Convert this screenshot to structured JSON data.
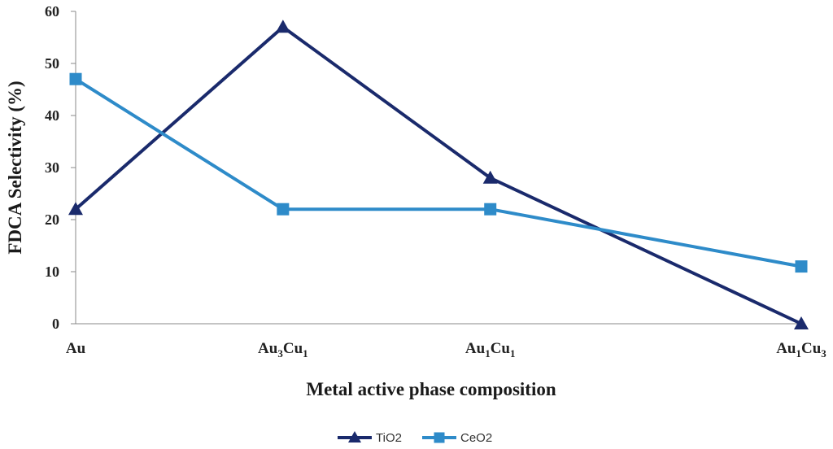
{
  "chart_data": {
    "type": "line",
    "categories": [
      {
        "base": "Au",
        "parts": []
      },
      {
        "base": "Au",
        "parts": [
          {
            "t": "3",
            "sub": true
          },
          {
            "t": "Cu",
            "sub": false
          },
          {
            "t": "1",
            "sub": true
          }
        ]
      },
      {
        "base": "Au",
        "parts": [
          {
            "t": "1",
            "sub": true
          },
          {
            "t": "Cu",
            "sub": false
          },
          {
            "t": "1",
            "sub": true
          }
        ]
      },
      {
        "base": "Au",
        "parts": [
          {
            "t": "1",
            "sub": true
          },
          {
            "t": "Cu",
            "sub": false
          },
          {
            "t": "3",
            "sub": true
          }
        ]
      }
    ],
    "x_positions": [
      0,
      1,
      2,
      3.5
    ],
    "series": [
      {
        "name": "TiO2",
        "values": [
          22,
          57,
          28,
          0
        ],
        "color": "#1a2a6c",
        "marker": "triangle"
      },
      {
        "name": "CeO2",
        "values": [
          47,
          22,
          22,
          11
        ],
        "color": "#2e8bc9",
        "marker": "square"
      }
    ],
    "xlabel": "Metal active phase composition",
    "ylabel": "FDCA Selectivity (%)",
    "ylim": [
      0,
      60
    ],
    "yticks": [
      0,
      10,
      20,
      30,
      40,
      50,
      60
    ],
    "grid": false,
    "legend_position": "bottom"
  }
}
